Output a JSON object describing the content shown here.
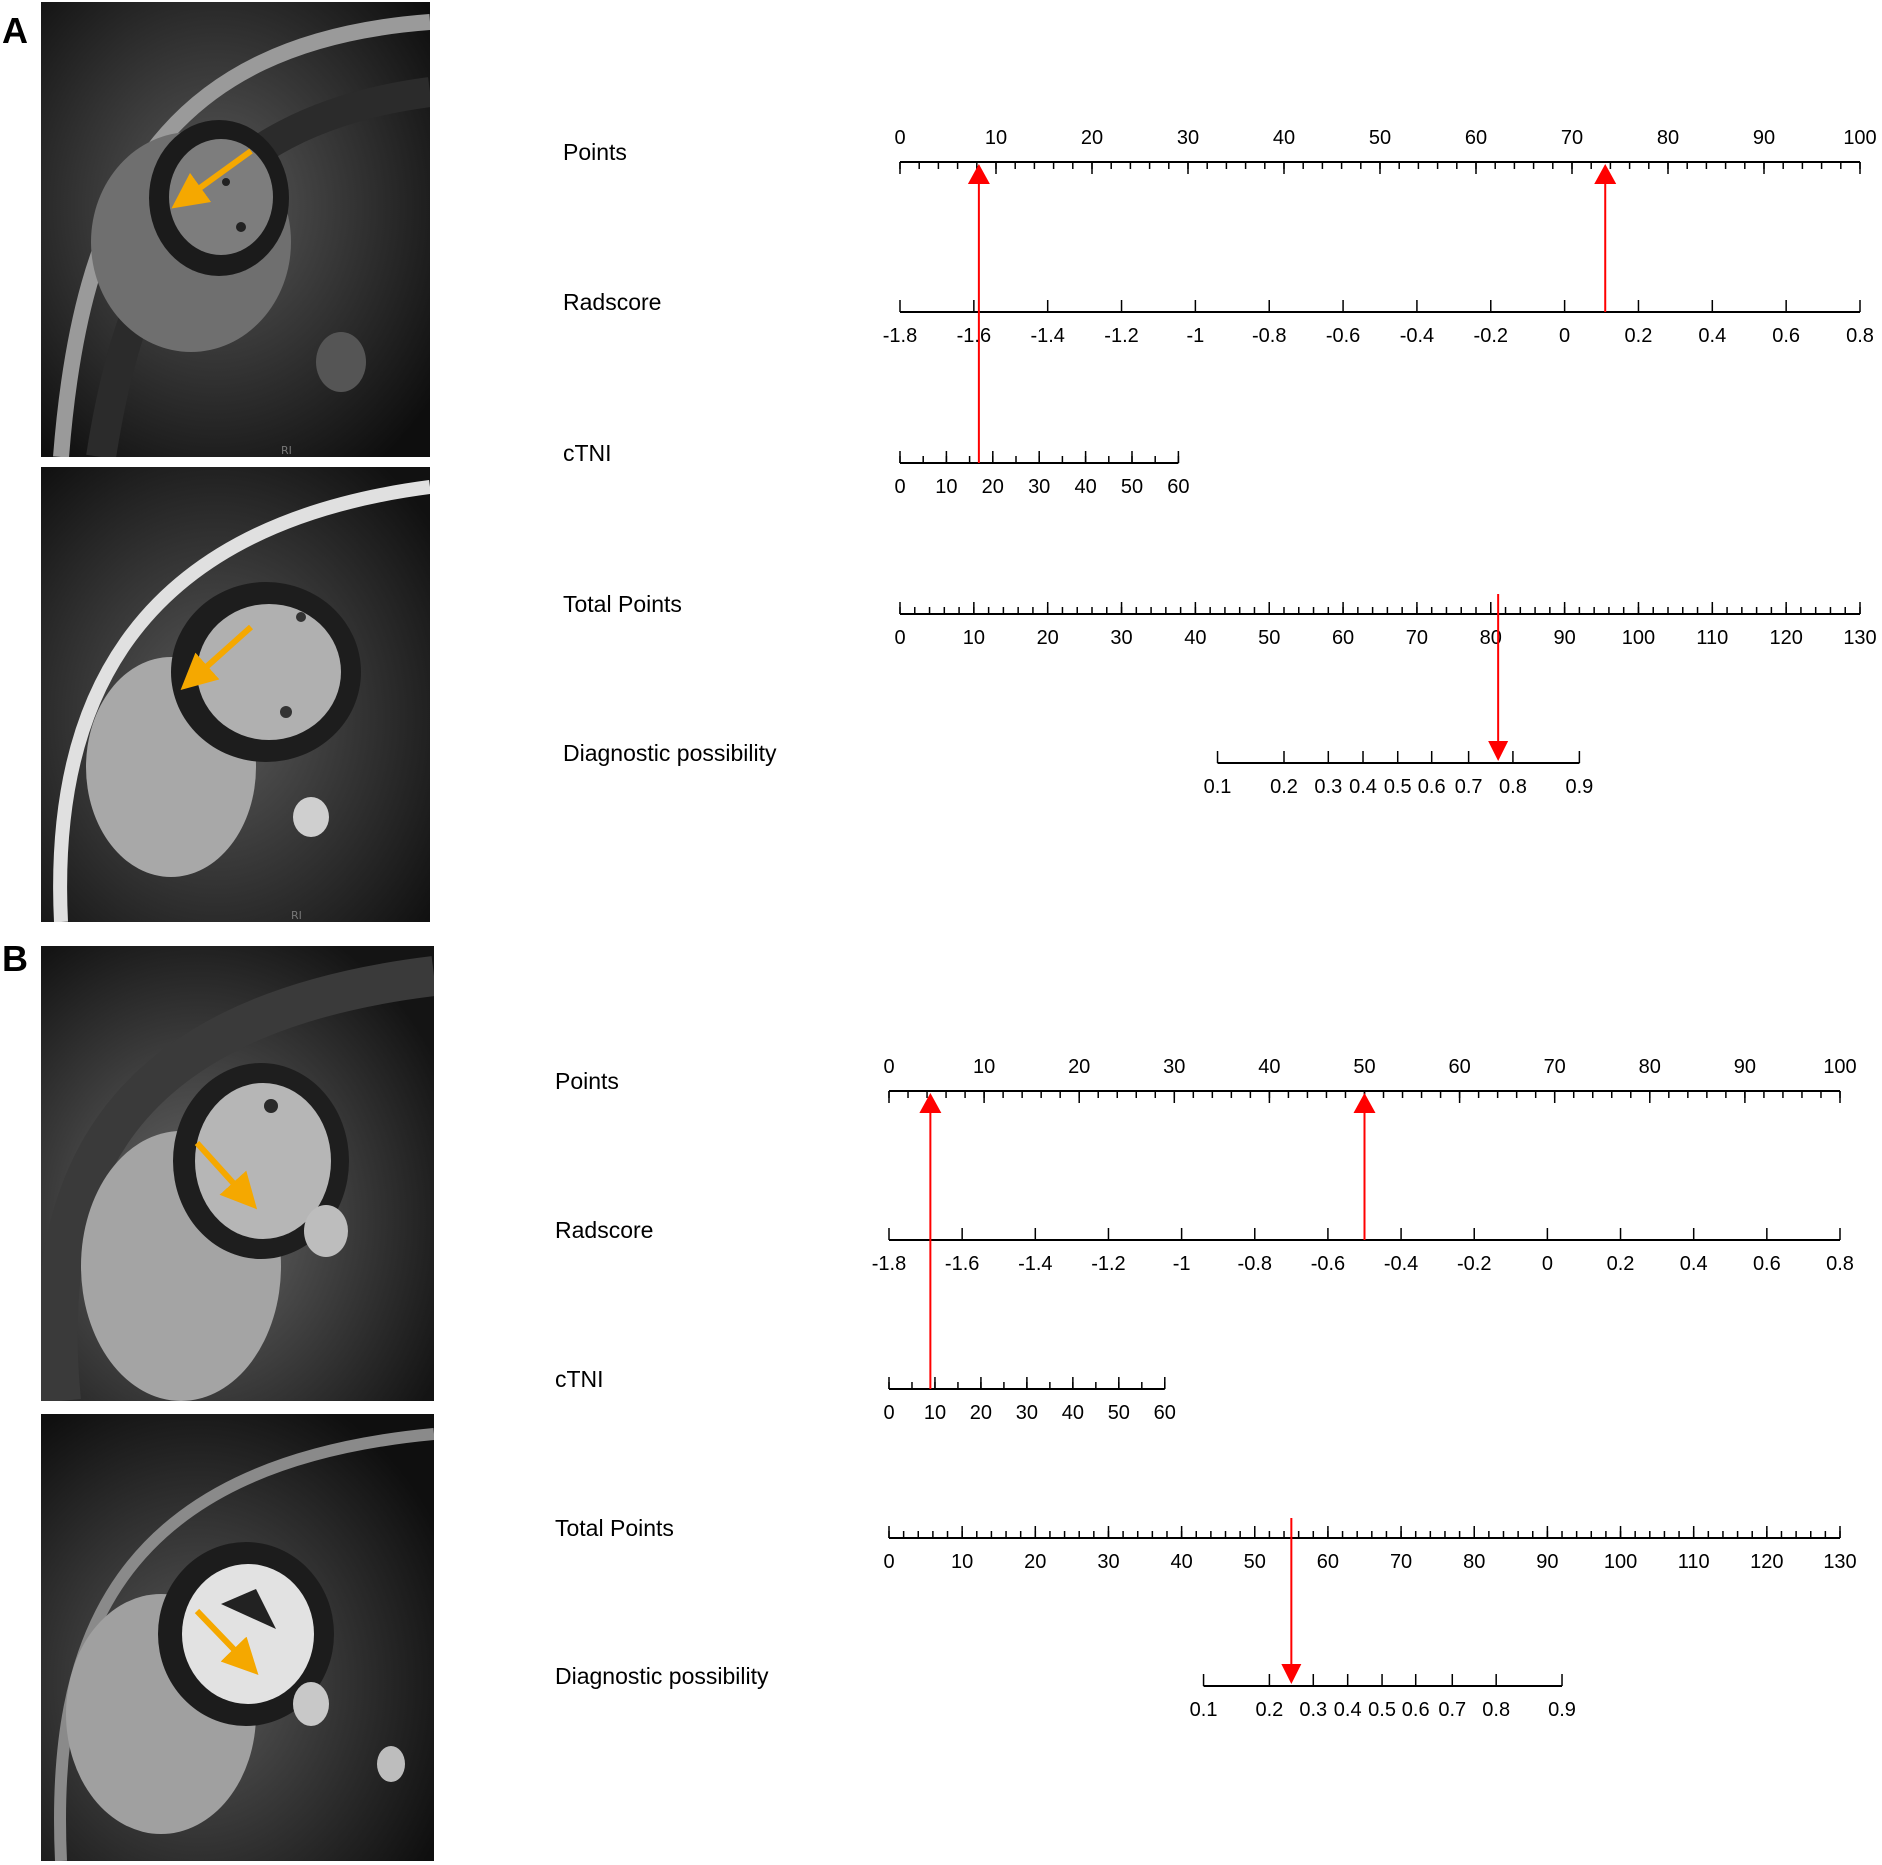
{
  "panels": [
    {
      "letter": "A",
      "mri_top_corner_text": "RI",
      "mri_bottom_corner_text": "RI",
      "arrow_color": "#F5A800",
      "chart_data": {
        "type": "nomogram",
        "axes": [
          {
            "name": "Points",
            "min": 0,
            "max": 100,
            "ticks": [
              0,
              10,
              20,
              30,
              40,
              50,
              60,
              70,
              80,
              90,
              100
            ],
            "labels_above": true,
            "minor_step": 2
          },
          {
            "name": "Radscore",
            "min": -1.8,
            "max": 0.8,
            "ticks": [
              -1.8,
              -1.6,
              -1.4,
              -1.2,
              -1,
              -0.8,
              -0.6,
              -0.4,
              -0.2,
              0,
              0.2,
              0.4,
              0.6,
              0.8
            ],
            "tick_labels": [
              "-1.8",
              "-1.6",
              "-1.4",
              "-1.2",
              "-1",
              "-0.8",
              "-0.6",
              "-0.4",
              "-0.2",
              "0",
              "0.2",
              "0.4",
              "0.6",
              "0.8"
            ],
            "points_at_min": 0,
            "points_at_max": 100
          },
          {
            "name": "cTNI",
            "min": 0,
            "max": 60,
            "ticks": [
              0,
              10,
              20,
              30,
              40,
              50,
              60
            ],
            "minor_step": 5,
            "points_at_min": 0,
            "points_at_max": 29
          },
          {
            "name": "Total Points",
            "min": 0,
            "max": 130,
            "ticks": [
              0,
              10,
              20,
              30,
              40,
              50,
              60,
              70,
              80,
              90,
              100,
              110,
              120,
              130
            ],
            "minor_step": 2
          },
          {
            "name": "Diagnostic possibility",
            "ticks": [
              0.1,
              0.2,
              0.3,
              0.4,
              0.5,
              0.6,
              0.7,
              0.8,
              0.9
            ],
            "tick_labels": [
              "0.1",
              "0.2",
              "0.3",
              "0.4",
              "0.5",
              "0.6",
              "0.7",
              "0.8",
              "0.9"
            ],
            "total_points_at_ticks": [
              43,
              52,
              58,
              62.7,
              67.4,
              72,
              77,
              83,
              92
            ]
          }
        ],
        "markers": {
          "radscore_value": 0.11,
          "ctni_value": 17,
          "total_points": 81
        },
        "marker_color": "#FF0000"
      }
    },
    {
      "letter": "B",
      "mri_top_corner_text": "",
      "mri_bottom_corner_text": "",
      "arrow_color": "#F5A800",
      "chart_data": {
        "type": "nomogram",
        "axes": [
          {
            "name": "Points",
            "min": 0,
            "max": 100,
            "ticks": [
              0,
              10,
              20,
              30,
              40,
              50,
              60,
              70,
              80,
              90,
              100
            ],
            "labels_above": true,
            "minor_step": 2
          },
          {
            "name": "Radscore",
            "min": -1.8,
            "max": 0.8,
            "ticks": [
              -1.8,
              -1.6,
              -1.4,
              -1.2,
              -1,
              -0.8,
              -0.6,
              -0.4,
              -0.2,
              0,
              0.2,
              0.4,
              0.6,
              0.8
            ],
            "tick_labels": [
              "-1.8",
              "-1.6",
              "-1.4",
              "-1.2",
              "-1",
              "-0.8",
              "-0.6",
              "-0.4",
              "-0.2",
              "0",
              "0.2",
              "0.4",
              "0.6",
              "0.8"
            ],
            "points_at_min": 0,
            "points_at_max": 100
          },
          {
            "name": "cTNI",
            "min": 0,
            "max": 60,
            "ticks": [
              0,
              10,
              20,
              30,
              40,
              50,
              60
            ],
            "minor_step": 5,
            "points_at_min": 0,
            "points_at_max": 29
          },
          {
            "name": "Total Points",
            "min": 0,
            "max": 130,
            "ticks": [
              0,
              10,
              20,
              30,
              40,
              50,
              60,
              70,
              80,
              90,
              100,
              110,
              120,
              130
            ],
            "minor_step": 2
          },
          {
            "name": "Diagnostic possibility",
            "ticks": [
              0.1,
              0.2,
              0.3,
              0.4,
              0.5,
              0.6,
              0.7,
              0.8,
              0.9
            ],
            "tick_labels": [
              "0.1",
              "0.2",
              "0.3",
              "0.4",
              "0.5",
              "0.6",
              "0.7",
              "0.8",
              "0.9"
            ],
            "total_points_at_ticks": [
              43,
              52,
              58,
              62.7,
              67.4,
              72,
              77,
              83,
              92
            ]
          }
        ],
        "markers": {
          "radscore_value": -0.5,
          "ctni_value": 9,
          "total_points": 55
        },
        "marker_color": "#FF0000"
      }
    }
  ]
}
